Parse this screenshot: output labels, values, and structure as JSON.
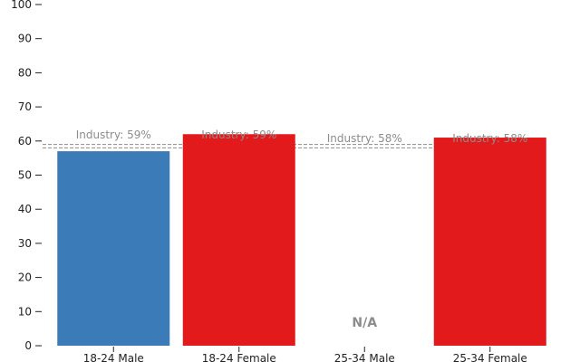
{
  "chart_data": {
    "type": "bar",
    "title": "",
    "xlabel": "",
    "ylabel": "",
    "ylim": [
      0,
      100
    ],
    "yticks": [
      0,
      10,
      20,
      30,
      40,
      50,
      60,
      70,
      80,
      90,
      100
    ],
    "grid": false,
    "categories": [
      "18-24 Male",
      "18-24 Female",
      "25-34 Male",
      "25-34 Female"
    ],
    "values": [
      57,
      62,
      null,
      61
    ],
    "bar_colors": [
      "#3a7bb8",
      "#e31a1c",
      "#e31a1c",
      "#e31a1c"
    ],
    "missing_label": "N/A",
    "benchmark_lines": [
      59,
      58
    ],
    "benchmark_labels": [
      "Industry: 59%",
      "Industry: 59%",
      "Industry: 58%",
      "Industry: 58%"
    ],
    "benchmark_color": "#8c8c8c"
  }
}
